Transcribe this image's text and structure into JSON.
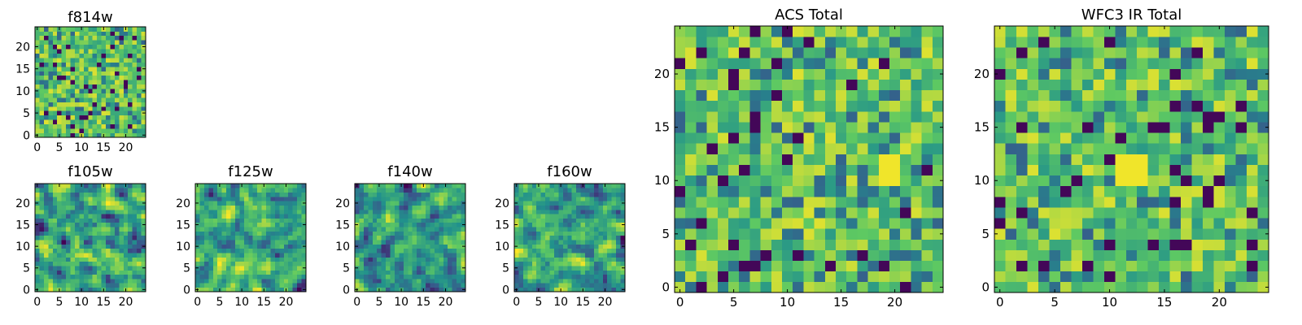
{
  "figure": {
    "colormap": "viridis",
    "colors": [
      "#440154",
      "#3b528b",
      "#21918c",
      "#5ec962",
      "#fde725"
    ]
  },
  "chart_data": [
    {
      "type": "heatmap",
      "title": "f814w",
      "grid": false,
      "xlim": [
        -0.5,
        24.5
      ],
      "ylim": [
        -0.5,
        24.5
      ],
      "nx": 25,
      "ny": 25,
      "xticks": [
        "0",
        "5",
        "10",
        "15",
        "20"
      ],
      "yticks": [
        "0",
        "5",
        "10",
        "15",
        "20"
      ],
      "pattern": "noisy"
    },
    {
      "type": "heatmap",
      "title": "f105w",
      "grid": false,
      "xlim": [
        -0.5,
        24.5
      ],
      "ylim": [
        -0.5,
        24.5
      ],
      "nx": 25,
      "ny": 25,
      "xticks": [
        "0",
        "5",
        "10",
        "15",
        "20"
      ],
      "yticks": [
        "0",
        "5",
        "10",
        "15",
        "20"
      ],
      "pattern": "smooth"
    },
    {
      "type": "heatmap",
      "title": "f125w",
      "grid": false,
      "xlim": [
        -0.5,
        24.5
      ],
      "ylim": [
        -0.5,
        24.5
      ],
      "nx": 25,
      "ny": 25,
      "xticks": [
        "0",
        "5",
        "10",
        "15",
        "20"
      ],
      "yticks": [
        "0",
        "5",
        "10",
        "15",
        "20"
      ],
      "pattern": "smooth"
    },
    {
      "type": "heatmap",
      "title": "f140w",
      "grid": false,
      "xlim": [
        -0.5,
        24.5
      ],
      "ylim": [
        -0.5,
        24.5
      ],
      "nx": 25,
      "ny": 25,
      "xticks": [
        "0",
        "5",
        "10",
        "15",
        "20"
      ],
      "yticks": [
        "0",
        "5",
        "10",
        "15",
        "20"
      ],
      "pattern": "smooth"
    },
    {
      "type": "heatmap",
      "title": "f160w",
      "grid": false,
      "xlim": [
        -0.5,
        24.5
      ],
      "ylim": [
        -0.5,
        24.5
      ],
      "nx": 25,
      "ny": 25,
      "xticks": [
        "0",
        "5",
        "10",
        "15",
        "20"
      ],
      "yticks": [
        "0",
        "5",
        "10",
        "15",
        "20"
      ],
      "pattern": "smooth"
    },
    {
      "type": "heatmap",
      "title": "ACS Total",
      "grid": false,
      "xlim": [
        -0.5,
        24.5
      ],
      "ylim": [
        -0.5,
        24.5
      ],
      "nx": 25,
      "ny": 25,
      "xticks": [
        "0",
        "5",
        "10",
        "15",
        "20"
      ],
      "yticks": [
        "0",
        "5",
        "10",
        "15",
        "20"
      ],
      "pattern": "noisy",
      "highlights": [
        {
          "x": 19,
          "y": 10,
          "w": 2,
          "h": 3,
          "value": 0.98
        }
      ]
    },
    {
      "type": "heatmap",
      "title": "WFC3 IR Total",
      "grid": false,
      "xlim": [
        -0.5,
        24.5
      ],
      "ylim": [
        -0.5,
        24.5
      ],
      "nx": 25,
      "ny": 25,
      "xticks": [
        "0",
        "5",
        "10",
        "15",
        "20"
      ],
      "yticks": [
        "0",
        "5",
        "10",
        "15",
        "20"
      ],
      "pattern": "noisy",
      "highlights": [
        {
          "x": 11,
          "y": 10,
          "w": 3,
          "h": 3,
          "value": 0.98
        }
      ]
    }
  ]
}
